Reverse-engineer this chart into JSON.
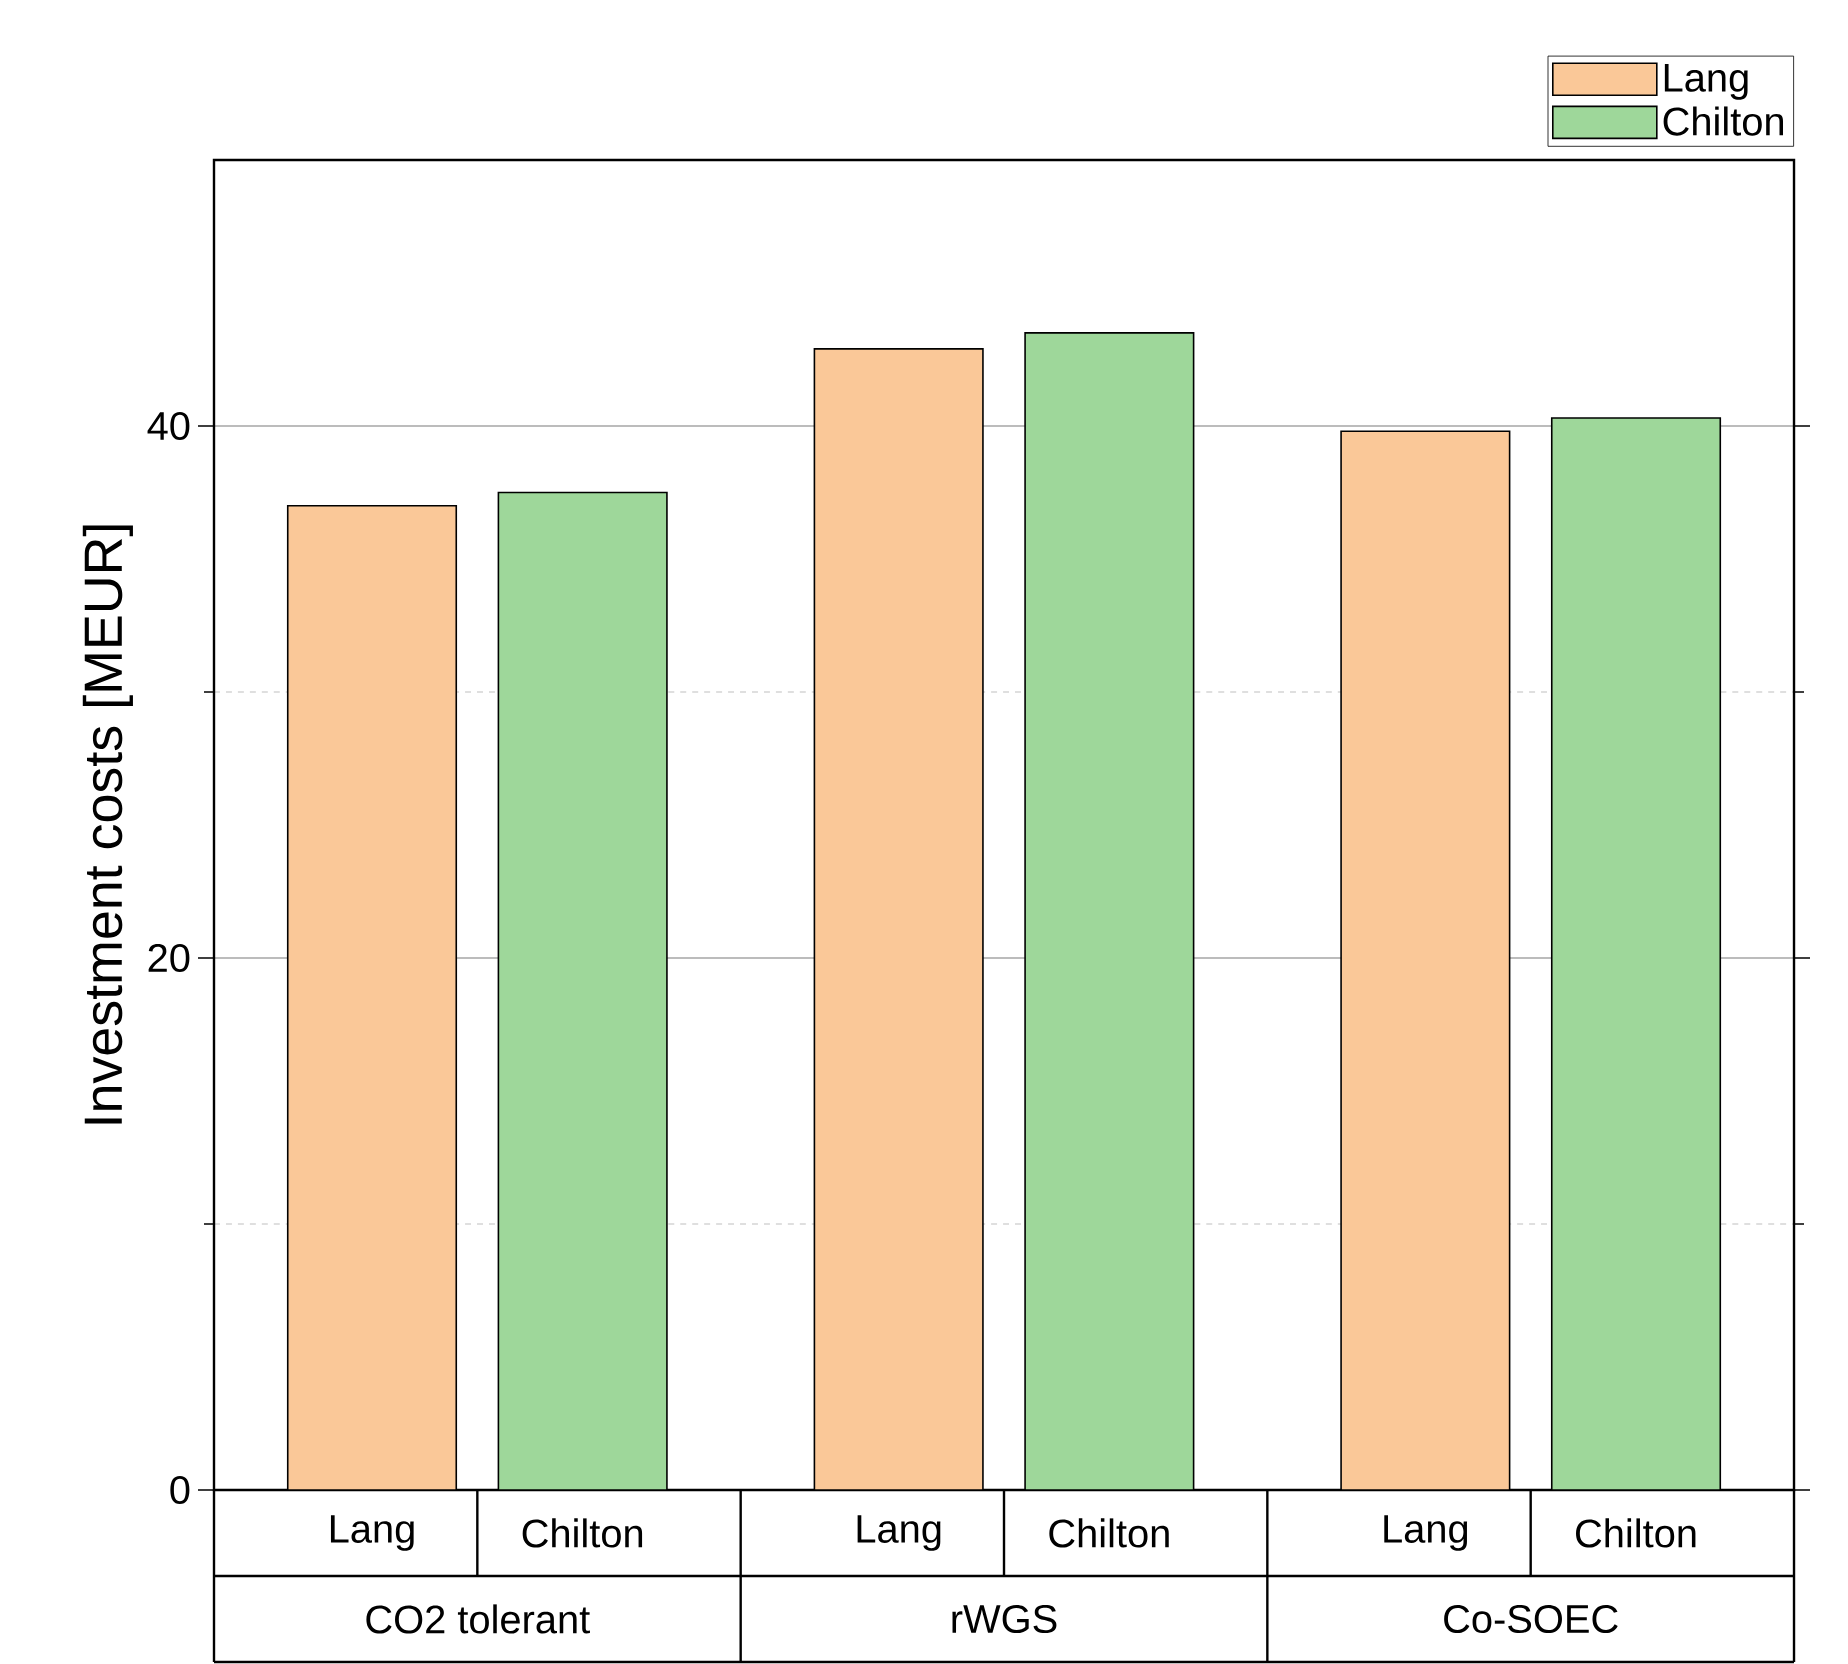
{
  "chart_data": {
    "type": "bar",
    "ylabel": "Investment costs [MEUR]",
    "categories": [
      "CO2 tolerant",
      "rWGS",
      "Co-SOEC"
    ],
    "series": [
      {
        "name": "Lang",
        "color": "#fac898",
        "values": [
          37.0,
          42.9,
          39.8
        ]
      },
      {
        "name": "Chilton",
        "color": "#9ed79a",
        "values": [
          37.5,
          43.5,
          40.3
        ]
      }
    ],
    "ylim": [
      0,
      50
    ],
    "yticks": [
      0,
      {
        "value": 10,
        "label": null
      },
      20,
      {
        "value": 30,
        "label": null
      },
      40
    ],
    "grid": "y",
    "legend": "top right"
  }
}
